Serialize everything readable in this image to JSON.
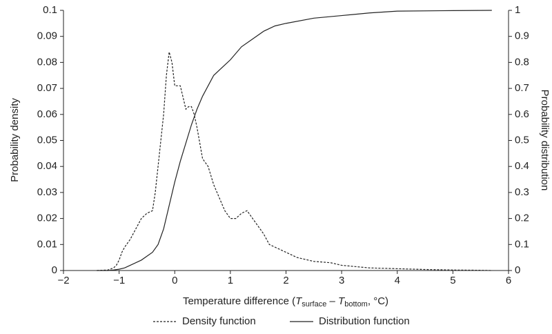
{
  "chart_data": {
    "type": "line",
    "ylabel": "Probability density",
    "y2label": "Probability distribution",
    "xlabel": [
      "Temperature difference (",
      "T",
      "surface",
      " – ",
      "T",
      "bottom",
      ", °C)"
    ],
    "xlim": [
      -2,
      6
    ],
    "xticks": [
      {
        "value": -2,
        "label": "−2"
      },
      {
        "value": -1,
        "label": "−1"
      },
      0,
      1,
      2,
      3,
      4,
      5,
      6
    ],
    "ylim": [
      0,
      0.1
    ],
    "yticks": [
      0,
      0.01,
      0.02,
      0.03,
      0.04,
      0.05,
      0.06,
      0.07,
      0.08,
      0.09,
      0.1
    ],
    "y2lim": [
      0,
      1
    ],
    "y2ticks": [
      0,
      0.1,
      0.2,
      0.3,
      0.4,
      0.5,
      0.6,
      0.7,
      0.8,
      0.9,
      1
    ],
    "legend": "bottom",
    "series": [
      {
        "name": "Density function",
        "color": "#222222",
        "dash": true,
        "x": [
          -1.4,
          -1.2,
          -1.1,
          -1.05,
          -1.0,
          -0.95,
          -0.9,
          -0.8,
          -0.7,
          -0.6,
          -0.5,
          -0.4,
          -0.35,
          -0.3,
          -0.2,
          -0.15,
          -0.1,
          -0.05,
          0,
          0.1,
          0.2,
          0.25,
          0.3,
          0.35,
          0.4,
          0.5,
          0.6,
          0.7,
          0.8,
          0.9,
          1.0,
          1.1,
          1.2,
          1.3,
          1.4,
          1.5,
          1.6,
          1.7,
          1.8,
          2.0,
          2.2,
          2.5,
          2.8,
          3.0,
          3.5,
          4.0,
          4.5,
          5.0,
          5.5,
          5.7
        ],
        "values": [
          0,
          0.0002,
          0.001,
          0.002,
          0.004,
          0.007,
          0.009,
          0.012,
          0.016,
          0.02,
          0.022,
          0.023,
          0.03,
          0.04,
          0.06,
          0.075,
          0.084,
          0.08,
          0.071,
          0.071,
          0.062,
          0.063,
          0.063,
          0.06,
          0.055,
          0.043,
          0.04,
          0.033,
          0.028,
          0.023,
          0.02,
          0.02,
          0.022,
          0.023,
          0.02,
          0.017,
          0.014,
          0.01,
          0.009,
          0.007,
          0.005,
          0.0035,
          0.003,
          0.002,
          0.001,
          0.0007,
          0.0004,
          0.0002,
          0.0001,
          0
        ]
      },
      {
        "name": "Distribution function",
        "color": "#222222",
        "dash": false,
        "axis": "y2",
        "x": [
          -1.4,
          -1.2,
          -1.1,
          -1.0,
          -0.9,
          -0.8,
          -0.6,
          -0.4,
          -0.3,
          -0.25,
          -0.2,
          -0.1,
          0,
          0.1,
          0.2,
          0.3,
          0.4,
          0.5,
          0.6,
          0.7,
          0.8,
          0.9,
          1.0,
          1.2,
          1.4,
          1.6,
          1.8,
          2.0,
          2.5,
          3.0,
          3.5,
          4.0,
          5.0,
          5.7
        ],
        "values": [
          0,
          0,
          0.002,
          0.005,
          0.01,
          0.02,
          0.04,
          0.07,
          0.1,
          0.13,
          0.16,
          0.25,
          0.34,
          0.42,
          0.49,
          0.56,
          0.62,
          0.67,
          0.71,
          0.75,
          0.77,
          0.79,
          0.81,
          0.86,
          0.89,
          0.92,
          0.94,
          0.95,
          0.97,
          0.98,
          0.99,
          0.997,
          0.999,
          1.0
        ]
      }
    ]
  }
}
